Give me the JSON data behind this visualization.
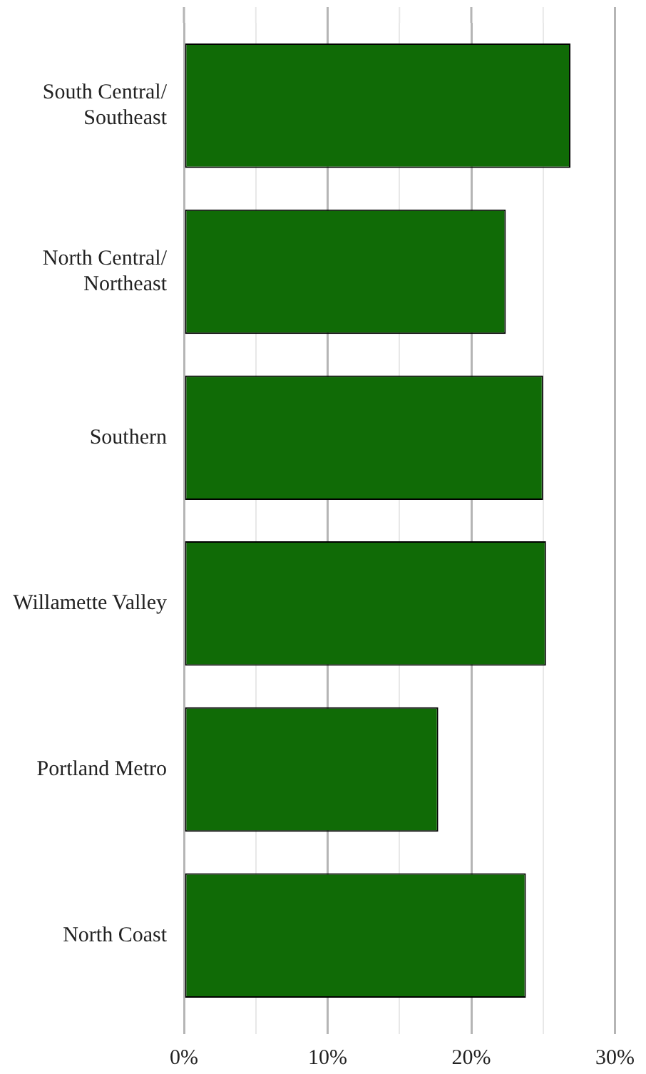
{
  "chart_data": {
    "type": "bar",
    "orientation": "horizontal",
    "categories": [
      "South Central/ Southeast",
      "North Central/ Northeast",
      "Southern",
      "Willamette Valley",
      "Portland Metro",
      "North Coast"
    ],
    "values": [
      26.9,
      22.4,
      25.0,
      25.2,
      17.7,
      23.8
    ],
    "color": "#106b06",
    "xlim": [
      0,
      30
    ],
    "xticks": [
      {
        "value": 0,
        "label": "0%"
      },
      {
        "value": 5,
        "label": null
      },
      {
        "value": 10,
        "label": "10%"
      },
      {
        "value": 15,
        "label": null
      },
      {
        "value": 20,
        "label": "20%"
      },
      {
        "value": 25,
        "label": null
      },
      {
        "value": 30,
        "label": "30%"
      }
    ],
    "grid": "x"
  }
}
